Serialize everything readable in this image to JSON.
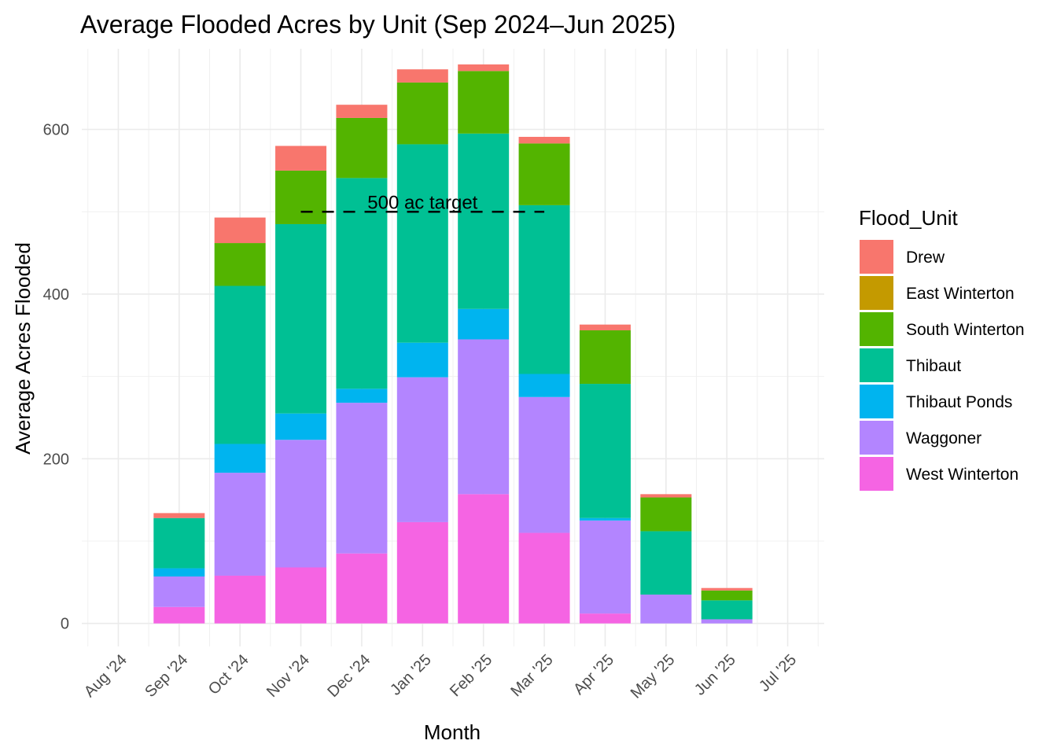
{
  "chart_data": {
    "type": "bar",
    "stacked": true,
    "title": "Average Flooded Acres by Unit (Sep 2024–Jun 2025)",
    "xlabel": "Month",
    "ylabel": "Average Acres Flooded",
    "categories": [
      "Aug '24",
      "Sep '24",
      "Oct '24",
      "Nov '24",
      "Dec '24",
      "Jan '25",
      "Feb '25",
      "Mar '25",
      "Apr '25",
      "May '25",
      "Jun '25",
      "Jul '25"
    ],
    "y_ticks": [
      0,
      200,
      400,
      600
    ],
    "ylim": [
      -28,
      698
    ],
    "grid": true,
    "legend": {
      "title": "Flood_Unit",
      "placement": "right"
    },
    "series": [
      {
        "name": "West Winterton",
        "color": "#F564E3",
        "values": [
          0,
          20,
          58,
          68,
          85,
          123,
          157,
          110,
          12,
          0,
          0,
          0
        ]
      },
      {
        "name": "Waggoner",
        "color": "#B385FF",
        "values": [
          0,
          37,
          125,
          155,
          183,
          176,
          188,
          165,
          113,
          35,
          5,
          0
        ]
      },
      {
        "name": "Thibaut Ponds",
        "color": "#00B4EF",
        "values": [
          0,
          10,
          35,
          32,
          17,
          42,
          37,
          28,
          3,
          0,
          0,
          0
        ]
      },
      {
        "name": "Thibaut",
        "color": "#00C094",
        "values": [
          0,
          61,
          192,
          230,
          256,
          241,
          213,
          205,
          163,
          77,
          23,
          0
        ]
      },
      {
        "name": "South Winterton",
        "color": "#53B400",
        "values": [
          0,
          0,
          52,
          65,
          73,
          75,
          76,
          75,
          65,
          41,
          12,
          0
        ]
      },
      {
        "name": "East Winterton",
        "color": "#C49A00",
        "values": [
          0,
          0,
          0,
          0,
          0,
          0,
          0,
          0,
          0,
          0,
          0,
          0
        ]
      },
      {
        "name": "Drew",
        "color": "#F8766D",
        "values": [
          0,
          6,
          31,
          30,
          16,
          16,
          8,
          8,
          7,
          4,
          3,
          0
        ]
      }
    ],
    "reference_line": {
      "label": "500 ac target",
      "value": 500,
      "from": "Nov '24",
      "to": "Mar '25",
      "style": "dashed"
    }
  }
}
